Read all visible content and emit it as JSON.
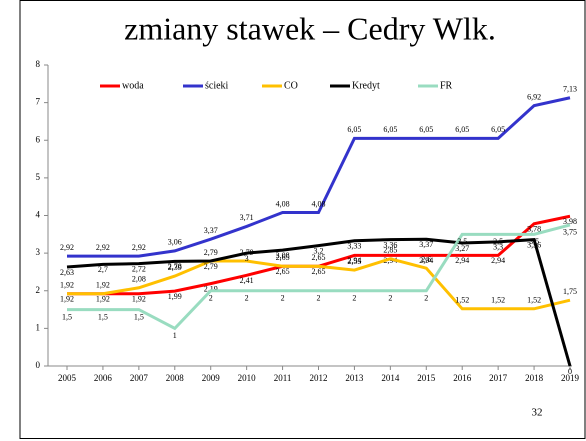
{
  "chart_data": {
    "type": "line",
    "title": "zmiany stawek – Cedry Wlk.",
    "page_number": "32",
    "categories": [
      "2005",
      "2006",
      "2007",
      "2008",
      "2009",
      "2010",
      "2011",
      "2012",
      "2013",
      "2014",
      "2015",
      "2016",
      "2017",
      "2018",
      "2019"
    ],
    "ylim": [
      0,
      8
    ],
    "yticks": [
      0,
      1,
      2,
      3,
      4,
      5,
      6,
      7,
      8
    ],
    "series": [
      {
        "name": "woda",
        "color": "#ff0000",
        "values": [
          1.92,
          1.92,
          1.92,
          1.99,
          2.19,
          2.41,
          2.65,
          2.65,
          2.94,
          2.94,
          2.94,
          2.94,
          2.94,
          3.78,
          3.98
        ],
        "value_labels": [
          "1,92",
          "1,92",
          "1,92",
          "1,99",
          "2,19",
          "2,41",
          "2,65",
          "2,65",
          "2,94",
          "2,94",
          "2,94",
          "2,94",
          "2,94",
          "3,78",
          "3,98"
        ]
      },
      {
        "name": "ścieki",
        "color": "#3333cc",
        "values": [
          2.92,
          2.92,
          2.92,
          3.06,
          3.37,
          3.71,
          4.08,
          4.08,
          6.05,
          6.05,
          6.05,
          6.05,
          6.05,
          6.92,
          7.13
        ],
        "value_labels": [
          "2,92",
          "2,92",
          "2,92",
          "3,06",
          "3,37",
          "3,71",
          "4,08",
          "4,08",
          "6,05",
          "6,05",
          "6,05",
          "6,05",
          "6,05",
          "6,92",
          "7,13"
        ]
      },
      {
        "name": "CO",
        "color": "#ffc000",
        "values": [
          1.92,
          1.92,
          2.08,
          2.39,
          2.79,
          2.79,
          2.65,
          2.65,
          2.55,
          2.85,
          2.6,
          1.52,
          1.52,
          1.52,
          1.75
        ],
        "value_labels": [
          "1,92",
          "1,92",
          "2,08",
          "2,39",
          "2,79",
          "2,79",
          "2,65",
          "2,65",
          "2,55",
          "2,85",
          "2,6",
          "1,52",
          "1,52",
          "1,52",
          "1,75"
        ]
      },
      {
        "name": "Kredyt",
        "color": "#000000",
        "values": [
          2.63,
          2.7,
          2.72,
          2.78,
          2.79,
          3,
          3.08,
          3.2,
          3.33,
          3.36,
          3.37,
          3.27,
          3.3,
          3.36,
          0
        ],
        "value_labels": [
          "2,63",
          "2,7",
          "2,72",
          "2,78",
          "2,79",
          "3",
          "3,08",
          "3,2",
          "3,33",
          "3,36",
          "3,37",
          "3,27",
          "3,3",
          "3,36",
          "0"
        ]
      },
      {
        "name": "FR",
        "color": "#99dcc0",
        "values": [
          1.5,
          1.5,
          1.5,
          1,
          2,
          2,
          2,
          2,
          2,
          2,
          2,
          3.5,
          3.5,
          3.5,
          3.75
        ],
        "value_labels": [
          "1,5",
          "1,5",
          "1,5",
          "1",
          "2",
          "2",
          "2",
          "2",
          "2",
          "2",
          "2",
          "3,5",
          "3,5",
          "3,5",
          "3,75"
        ]
      }
    ]
  }
}
